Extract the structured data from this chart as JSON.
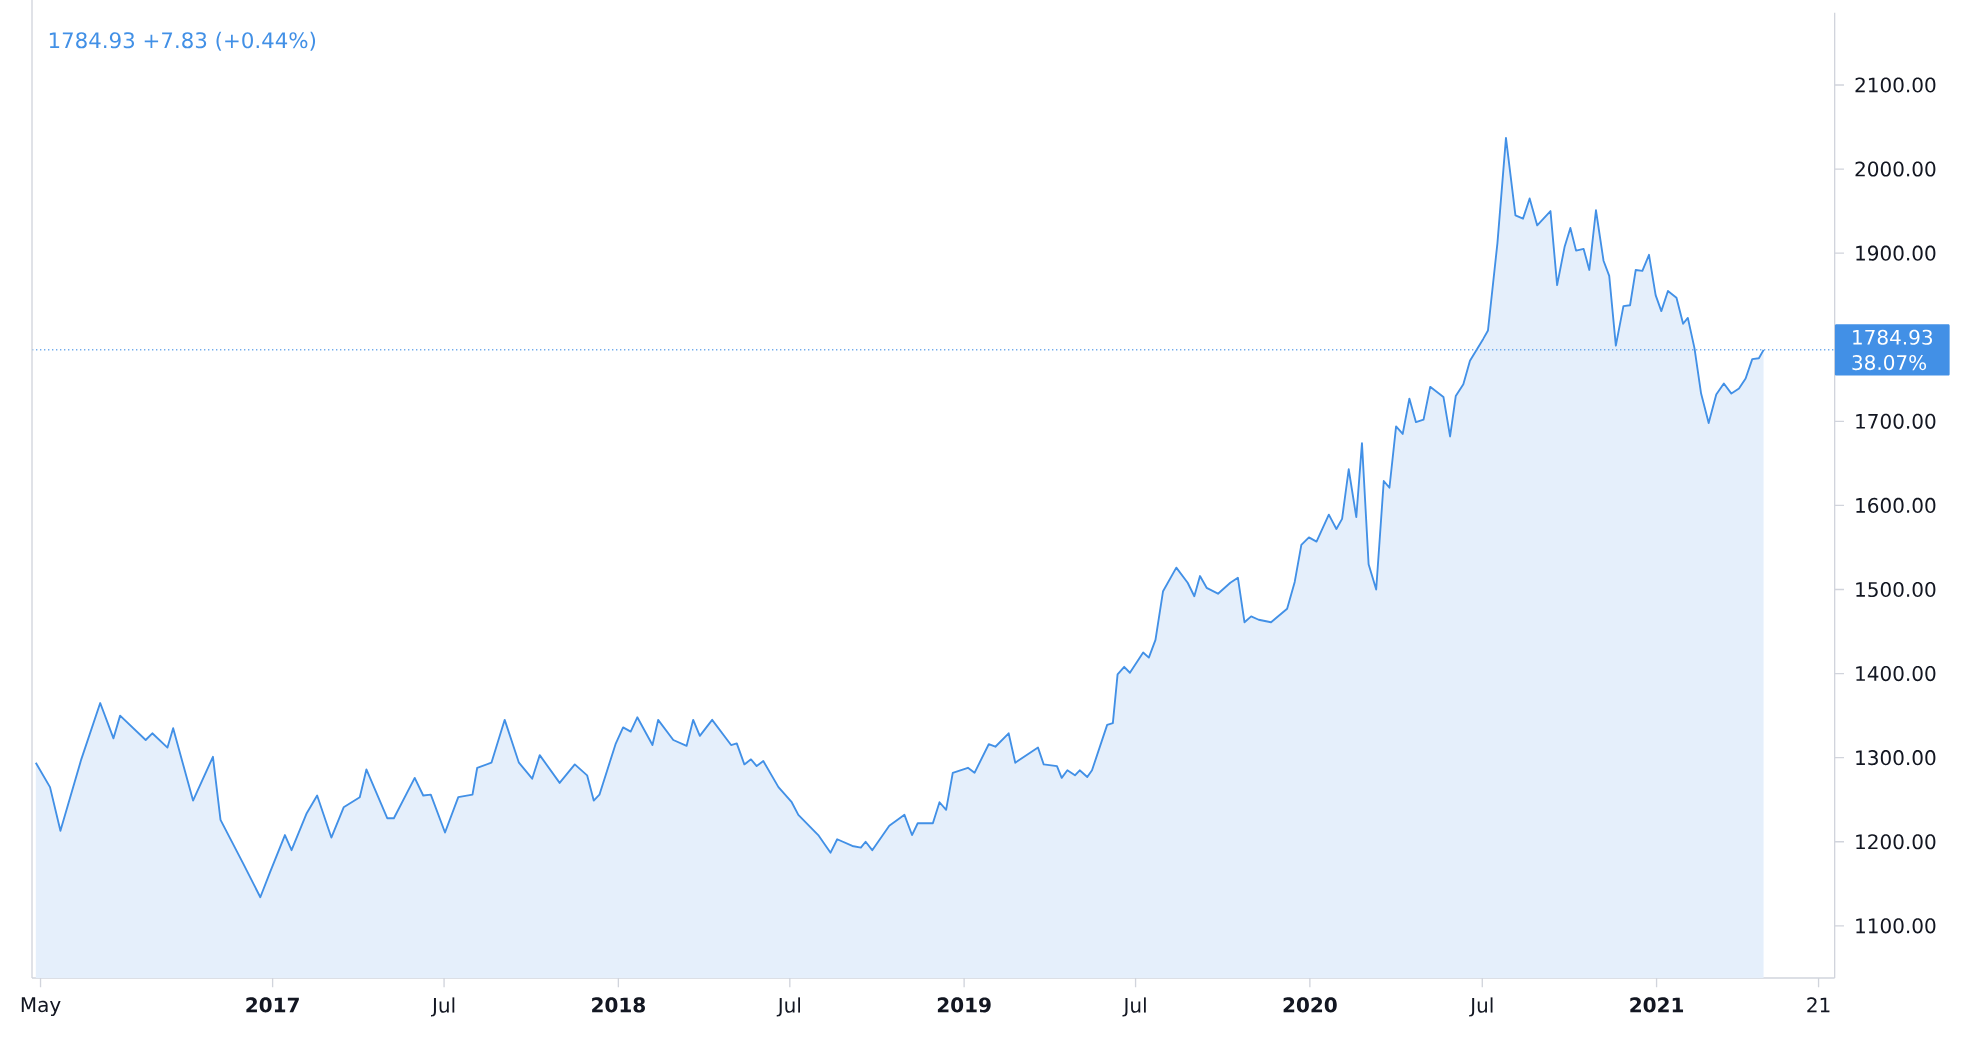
{
  "chart_data": {
    "type": "area",
    "title": "1784.93  +7.83 (+0.44%)",
    "x": [
      "2016-04-26",
      "2016-05-11",
      "2016-05-22",
      "2016-06-13",
      "2016-07-03",
      "2016-07-17",
      "2016-07-24",
      "2016-08-20",
      "2016-08-27",
      "2016-09-12",
      "2016-09-18",
      "2016-10-09",
      "2016-10-30",
      "2016-11-07",
      "2016-12-01",
      "2016-12-19",
      "2016-12-29",
      "2017-01-14",
      "2017-01-21",
      "2017-02-06",
      "2017-02-17",
      "2017-03-04",
      "2017-03-17",
      "2017-04-03",
      "2017-04-10",
      "2017-05-02",
      "2017-05-09",
      "2017-05-31",
      "2017-06-09",
      "2017-06-17",
      "2017-07-02",
      "2017-07-16",
      "2017-07-31",
      "2017-08-05",
      "2017-08-20",
      "2017-09-03",
      "2017-09-18",
      "2017-10-02",
      "2017-10-10",
      "2017-10-31",
      "2017-11-16",
      "2017-11-29",
      "2017-12-06",
      "2017-12-12",
      "2017-12-29",
      "2018-01-06",
      "2018-01-14",
      "2018-01-21",
      "2018-02-06",
      "2018-02-12",
      "2018-02-28",
      "2018-03-14",
      "2018-03-21",
      "2018-03-28",
      "2018-04-10",
      "2018-04-30",
      "2018-05-06",
      "2018-05-14",
      "2018-05-21",
      "2018-05-27",
      "2018-06-03",
      "2018-06-19",
      "2018-07-03",
      "2018-07-10",
      "2018-07-31",
      "2018-08-13",
      "2018-08-20",
      "2018-09-05",
      "2018-09-14",
      "2018-09-19",
      "2018-09-26",
      "2018-10-14",
      "2018-10-30",
      "2018-11-07",
      "2018-11-13",
      "2018-11-29",
      "2018-12-06",
      "2018-12-13",
      "2018-12-20",
      "2019-01-05",
      "2019-01-12",
      "2019-01-27",
      "2019-02-03",
      "2019-02-17",
      "2019-02-24",
      "2019-03-20",
      "2019-03-26",
      "2019-04-09",
      "2019-04-14",
      "2019-04-20",
      "2019-04-28",
      "2019-05-03",
      "2019-05-11",
      "2019-05-16",
      "2019-06-01",
      "2019-06-07",
      "2019-06-12",
      "2019-06-19",
      "2019-06-25",
      "2019-07-09",
      "2019-07-15",
      "2019-07-22",
      "2019-07-30",
      "2019-08-13",
      "2019-08-25",
      "2019-09-01",
      "2019-09-07",
      "2019-09-14",
      "2019-09-26",
      "2019-10-09",
      "2019-10-17",
      "2019-10-24",
      "2019-10-31",
      "2019-11-08",
      "2019-11-21",
      "2019-12-08",
      "2019-12-16",
      "2019-12-23",
      "2019-12-31",
      "2020-01-08",
      "2020-01-21",
      "2020-01-29",
      "2020-02-04",
      "2020-02-11",
      "2020-02-19",
      "2020-02-25",
      "2020-03-03",
      "2020-03-11",
      "2020-03-19",
      "2020-03-25",
      "2020-04-01",
      "2020-04-08",
      "2020-04-15",
      "2020-04-22",
      "2020-04-30",
      "2020-05-07",
      "2020-05-21",
      "2020-05-28",
      "2020-06-03",
      "2020-06-11",
      "2020-06-18",
      "2020-07-02",
      "2020-07-07",
      "2020-07-17",
      "2020-07-26",
      "2020-08-05",
      "2020-08-13",
      "2020-08-20",
      "2020-08-28",
      "2020-09-11",
      "2020-09-18",
      "2020-09-26",
      "2020-10-02",
      "2020-10-08",
      "2020-10-16",
      "2020-10-22",
      "2020-10-29",
      "2020-11-06",
      "2020-11-12",
      "2020-11-19",
      "2020-11-27",
      "2020-12-04",
      "2020-12-10",
      "2020-12-17",
      "2020-12-24",
      "2020-12-31",
      "2021-01-06",
      "2021-01-13",
      "2021-01-22",
      "2021-01-29",
      "2021-02-03",
      "2021-02-10",
      "2021-02-17",
      "2021-02-25",
      "2021-03-05",
      "2021-03-13",
      "2021-03-21",
      "2021-03-29",
      "2021-04-05",
      "2021-04-12",
      "2021-04-19",
      "2021-04-24"
    ],
    "series": [
      {
        "color": "#4290e6",
        "values": [
          1294,
          1265,
          1213,
          1298,
          1365,
          1323,
          1350,
          1321,
          1329,
          1312,
          1335,
          1249,
          1301,
          1226,
          1174,
          1134,
          1163,
          1208,
          1190,
          1234,
          1255,
          1205,
          1241,
          1253,
          1286,
          1228,
          1228,
          1276,
          1255,
          1256,
          1211,
          1253,
          1256,
          1288,
          1294,
          1345,
          1294,
          1275,
          1303,
          1270,
          1292,
          1279,
          1249,
          1256,
          1316,
          1336,
          1331,
          1348,
          1315,
          1345,
          1321,
          1314,
          1345,
          1326,
          1345,
          1315,
          1317,
          1292,
          1298,
          1290,
          1296,
          1265,
          1247,
          1232,
          1208,
          1187,
          1203,
          1195,
          1193,
          1200,
          1190,
          1219,
          1232,
          1208,
          1222,
          1222,
          1247,
          1238,
          1282,
          1288,
          1282,
          1316,
          1313,
          1329,
          1294,
          1312,
          1292,
          1290,
          1276,
          1285,
          1279,
          1285,
          1277,
          1285,
          1339,
          1341,
          1399,
          1408,
          1401,
          1425,
          1419,
          1440,
          1498,
          1526,
          1508,
          1492,
          1516,
          1502,
          1495,
          1508,
          1514,
          1461,
          1468,
          1464,
          1461,
          1477,
          1509,
          1553,
          1562,
          1557,
          1589,
          1572,
          1584,
          1643,
          1586,
          1674,
          1530,
          1500,
          1629,
          1621,
          1694,
          1685,
          1727,
          1699,
          1702,
          1741,
          1729,
          1682,
          1730,
          1744,
          1772,
          1798,
          1808,
          1912,
          2037,
          1945,
          1941,
          1965,
          1933,
          1950,
          1862,
          1908,
          1930,
          1903,
          1905,
          1880,
          1951,
          1891,
          1873,
          1790,
          1837,
          1838,
          1880,
          1879,
          1898,
          1850,
          1831,
          1855,
          1847,
          1816,
          1823,
          1787,
          1733,
          1698,
          1732,
          1745,
          1733,
          1739,
          1751,
          1774,
          1775,
          1785
        ]
      }
    ],
    "xlim": [
      "2016-04-22",
      "2021-07-08"
    ],
    "xticks": [
      {
        "value": "2016-05-01",
        "label": "May"
      },
      {
        "value": "2017-01-01",
        "label": "2017"
      },
      {
        "value": "2017-07-01",
        "label": "Jul"
      },
      {
        "value": "2018-01-01",
        "label": "2018"
      },
      {
        "value": "2018-07-01",
        "label": "Jul"
      },
      {
        "value": "2019-01-01",
        "label": "2019"
      },
      {
        "value": "2019-07-01",
        "label": "Jul"
      },
      {
        "value": "2020-01-01",
        "label": "2020"
      },
      {
        "value": "2020-07-01",
        "label": "Jul"
      },
      {
        "value": "2021-01-01",
        "label": "2021"
      },
      {
        "value": "2021-06-21",
        "label": "21"
      }
    ],
    "ylim": [
      1038,
      2186
    ],
    "yticks": [
      {
        "value": 1100,
        "label": "1100.00"
      },
      {
        "value": 1200,
        "label": "1200.00"
      },
      {
        "value": 1300,
        "label": "1300.00"
      },
      {
        "value": 1400,
        "label": "1400.00"
      },
      {
        "value": 1500,
        "label": "1500.00"
      },
      {
        "value": 1600,
        "label": "1600.00"
      },
      {
        "value": 1700,
        "label": "1700.00"
      },
      {
        "value": 1800,
        "label": null
      },
      {
        "value": 1900,
        "label": "1900.00"
      },
      {
        "value": 2000,
        "label": "2000.00"
      },
      {
        "value": 2100,
        "label": "2100.00"
      }
    ],
    "ref_lines": [
      {
        "axis": "y",
        "value": 1784.93,
        "label": "1784.93",
        "color": "#4290e6",
        "line_style": "dotted"
      }
    ],
    "annotations": [
      "38.07%"
    ],
    "marker": "none",
    "line_style": "solid"
  }
}
